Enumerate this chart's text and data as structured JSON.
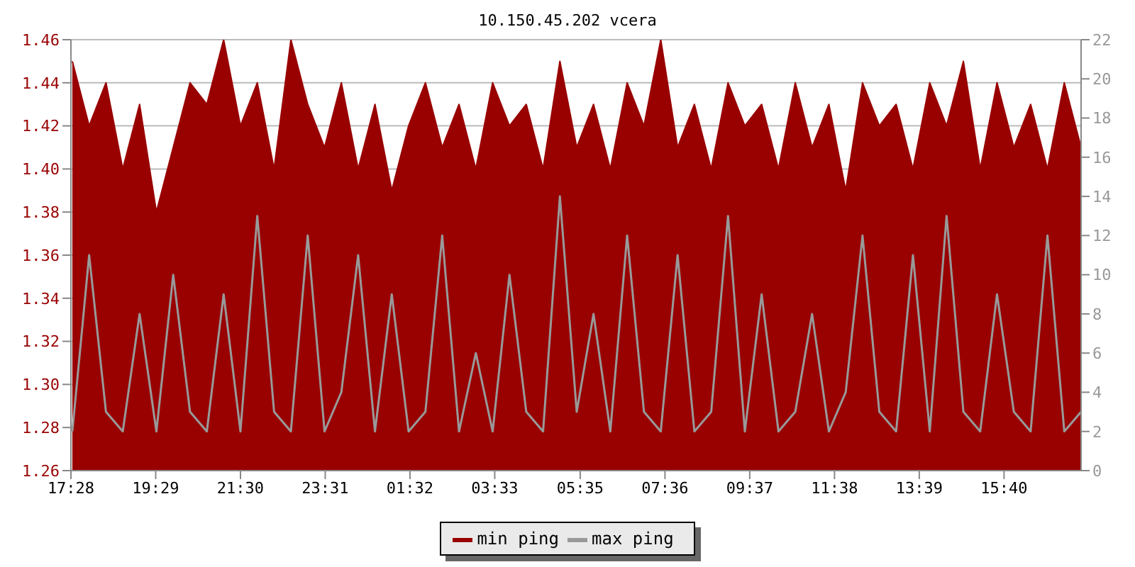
{
  "chart_data": {
    "type": "area",
    "title": "10.150.45.202 vcera",
    "x": [
      "--01-01T17:30",
      "--01-01T17:54",
      "--01-01T18:18",
      "--01-01T18:42",
      "--01-01T19:06",
      "--01-01T19:30",
      "--01-01T19:54",
      "--01-01T20:18",
      "--01-01T20:42",
      "--01-01T21:06",
      "--01-01T21:30",
      "--01-01T21:54",
      "--01-01T22:18",
      "--01-01T22:42",
      "--01-01T23:06",
      "--01-01T23:30",
      "--01-01T23:54",
      "--01-02T00:18",
      "--01-02T00:42",
      "--01-02T01:06",
      "--01-02T01:30",
      "--01-02T01:54",
      "--01-02T02:18",
      "--01-02T02:42",
      "--01-02T03:06",
      "--01-02T03:30",
      "--01-02T03:54",
      "--01-02T04:18",
      "--01-02T04:42",
      "--01-02T05:06",
      "--01-02T05:30",
      "--01-02T05:54",
      "--01-02T06:18",
      "--01-02T06:42",
      "--01-02T07:06",
      "--01-02T07:30",
      "--01-02T07:54",
      "--01-02T08:18",
      "--01-02T08:42",
      "--01-02T09:06",
      "--01-02T09:30",
      "--01-02T09:54",
      "--01-02T10:18",
      "--01-02T10:42",
      "--01-02T11:06",
      "--01-02T11:30",
      "--01-02T11:54",
      "--01-02T12:18",
      "--01-02T12:42",
      "--01-02T13:06",
      "--01-02T13:30",
      "--01-02T13:54",
      "--01-02T14:18",
      "--01-02T14:42",
      "--01-02T15:06",
      "--01-02T15:30",
      "--01-02T15:54",
      "--01-02T16:18",
      "--01-02T16:42",
      "--01-02T17:06",
      "--01-02T17:30"
    ],
    "series": [
      {
        "name": "min ping",
        "color": "#990000",
        "values": [
          1.45,
          1.42,
          1.44,
          1.4,
          1.43,
          1.38,
          1.41,
          1.44,
          1.43,
          1.46,
          1.42,
          1.44,
          1.4,
          1.46,
          1.43,
          1.41,
          1.44,
          1.4,
          1.43,
          1.39,
          1.42,
          1.44,
          1.41,
          1.43,
          1.4,
          1.44,
          1.42,
          1.43,
          1.4,
          1.45,
          1.41,
          1.43,
          1.4,
          1.44,
          1.42,
          1.46,
          1.41,
          1.43,
          1.4,
          1.44,
          1.42,
          1.43,
          1.4,
          1.44,
          1.41,
          1.43,
          1.39,
          1.44,
          1.42,
          1.43,
          1.4,
          1.44,
          1.42,
          1.45,
          1.4,
          1.44,
          1.41,
          1.43,
          1.4,
          1.44,
          1.41
        ]
      },
      {
        "name": "max ping",
        "type": "line",
        "axis": "y2",
        "color": "#999999",
        "values": [
          2,
          11,
          3,
          2,
          8,
          2,
          10,
          3,
          2,
          9,
          2,
          13,
          3,
          2,
          12,
          2,
          4,
          11,
          2,
          9,
          2,
          3,
          12,
          2,
          6,
          2,
          10,
          3,
          2,
          14,
          3,
          8,
          2,
          12,
          3,
          2,
          11,
          2,
          3,
          13,
          2,
          9,
          2,
          3,
          8,
          2,
          4,
          12,
          3,
          2,
          11,
          2,
          13,
          3,
          2,
          9,
          3,
          2,
          12,
          2,
          3
        ]
      }
    ],
    "xlim": [
      "--01-01T17:28",
      "--01-02T17:30"
    ],
    "xticks": [
      {
        "value": "--01-01T17:28",
        "label": "17:28"
      },
      {
        "value": "--01-01T19:29",
        "label": "19:29"
      },
      {
        "value": "--01-01T21:30",
        "label": "21:30"
      },
      {
        "value": "--01-01T23:31",
        "label": "23:31"
      },
      {
        "value": "--01-02T01:32",
        "label": "01:32"
      },
      {
        "value": "--01-02T03:33",
        "label": "03:33"
      },
      {
        "value": "--01-02T05:35",
        "label": "05:35"
      },
      {
        "value": "--01-02T07:36",
        "label": "07:36"
      },
      {
        "value": "--01-02T09:37",
        "label": "09:37"
      },
      {
        "value": "--01-02T11:38",
        "label": "11:38"
      },
      {
        "value": "--01-02T13:39",
        "label": "13:39"
      },
      {
        "value": "--01-02T15:40",
        "label": "15:40"
      }
    ],
    "ylim": [
      1.26,
      1.46
    ],
    "yticks": [
      1.26,
      1.28,
      {
        "value": 1.3,
        "label": "1.30"
      },
      1.32,
      1.34,
      1.36,
      1.38,
      {
        "value": 1.4,
        "label": "1.40"
      },
      1.42,
      1.44,
      1.46
    ],
    "y2lim": [
      0,
      22
    ],
    "y2ticks": [
      0,
      2,
      4,
      6,
      8,
      10,
      12,
      14,
      16,
      18,
      20,
      22
    ],
    "grid": "y",
    "legend": "bottom",
    "marker": "none",
    "line_style": "solid"
  }
}
